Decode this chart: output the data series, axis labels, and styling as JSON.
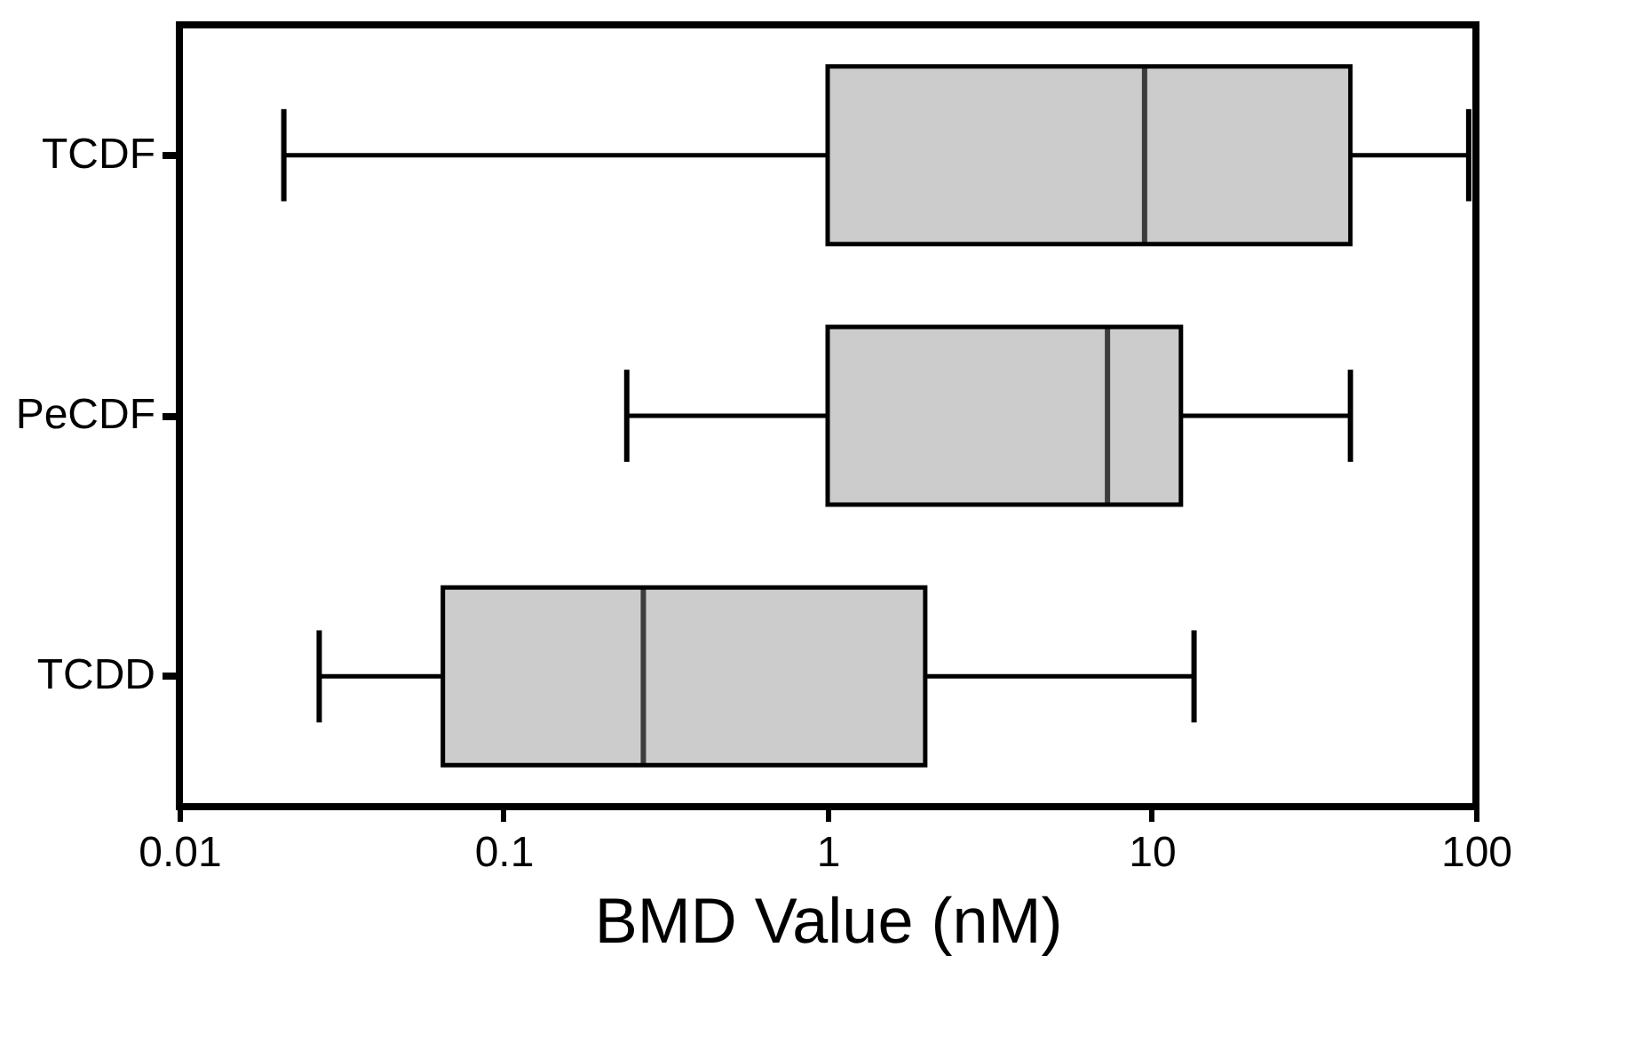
{
  "chart_data": {
    "type": "box",
    "orientation": "horizontal",
    "xlabel": "BMD Value (nM)",
    "categories": [
      "TCDF",
      "PeCDF",
      "TCDD"
    ],
    "boxes": [
      {
        "low": 0.021,
        "q1": 1,
        "median": 9.5,
        "q3": 41,
        "high": 95
      },
      {
        "low": 0.24,
        "q1": 1,
        "median": 7.3,
        "q3": 12.3,
        "high": 41
      },
      {
        "low": 0.027,
        "q1": 0.065,
        "median": 0.27,
        "q3": 2.0,
        "high": 13.5
      }
    ],
    "color": "#cccccc",
    "xlim": [
      0.01,
      100
    ],
    "xticks": [
      0.01,
      0.1,
      1,
      10,
      100
    ],
    "log": "x",
    "grid": false
  }
}
